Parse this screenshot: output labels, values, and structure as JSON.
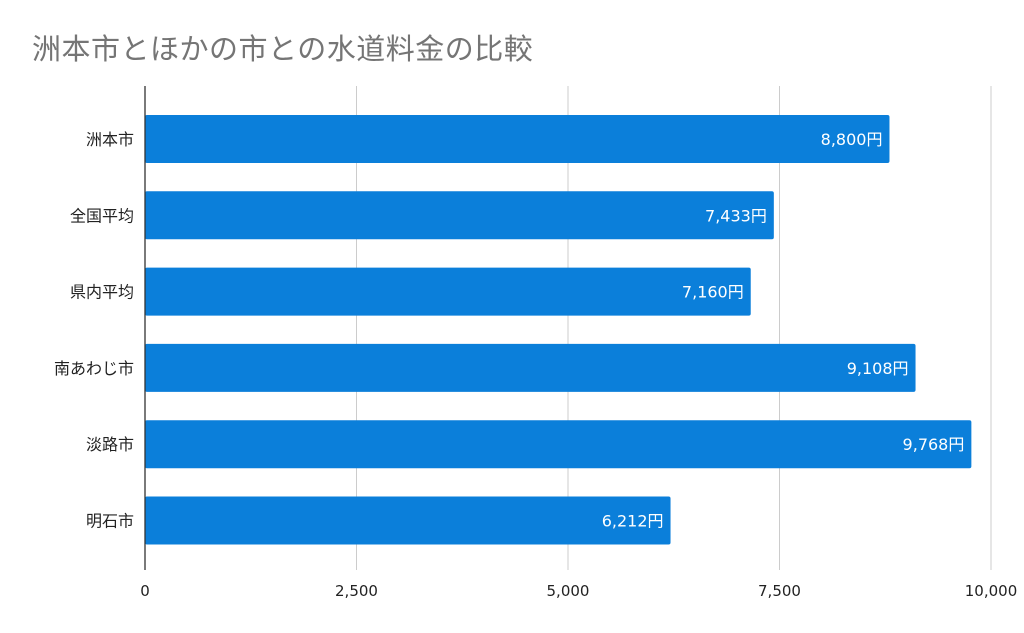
{
  "chart_data": {
    "type": "bar",
    "orientation": "horizontal",
    "title": "洲本市とほかの市との水道料金の比較",
    "categories": [
      "洲本市",
      "全国平均",
      "県内平均",
      "南あわじ市",
      "淡路市",
      "明石市"
    ],
    "values": [
      8800,
      7433,
      7160,
      9108,
      9768,
      6212
    ],
    "data_labels": [
      "8,800円",
      "7,433円",
      "7,160円",
      "9,108円",
      "9,768円",
      "6,212円"
    ],
    "xlim": [
      0,
      10000
    ],
    "xticks": [
      0,
      2500,
      5000,
      7500,
      10000
    ],
    "xtick_labels": [
      "0",
      "2,500",
      "5,000",
      "7,500",
      "10,000"
    ],
    "xlabel": "",
    "ylabel": "",
    "grid": true,
    "bar_color": "#0b7fda",
    "legend": "none"
  }
}
